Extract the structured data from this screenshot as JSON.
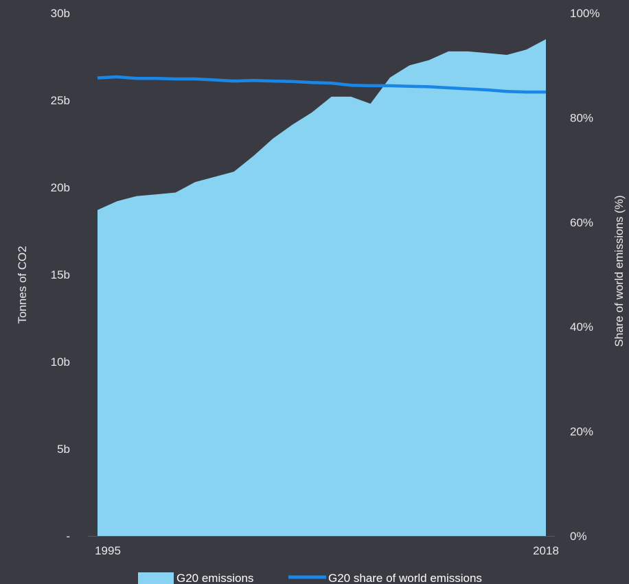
{
  "chart_data": {
    "type": "area",
    "x_range": [
      1995,
      2018
    ],
    "x_tick_labels": [
      "1995",
      "2018"
    ],
    "y_left": {
      "label": "Tonnes of CO2",
      "ylim": [
        0,
        30
      ],
      "tick_values": [
        0,
        5,
        10,
        15,
        20,
        25,
        30
      ],
      "tick_labels": [
        "-",
        "5b",
        "10b",
        "15b",
        "20b",
        "25b",
        "30b"
      ]
    },
    "y_right": {
      "label": "Share of world emissions (%)",
      "ylim": [
        0,
        100
      ],
      "tick_values": [
        0,
        20,
        40,
        60,
        80,
        100
      ],
      "tick_labels": [
        "0%",
        "20%",
        "40%",
        "60%",
        "80%",
        "100%"
      ]
    },
    "series": [
      {
        "name": "G20 emissions",
        "kind": "area",
        "axis": "left",
        "unit": "billion tonnes CO2",
        "color": "#87d3f1",
        "x": [
          1995,
          1996,
          1997,
          1998,
          1999,
          2000,
          2001,
          2002,
          2003,
          2004,
          2005,
          2006,
          2007,
          2008,
          2009,
          2010,
          2011,
          2012,
          2013,
          2014,
          2015,
          2016,
          2017,
          2018
        ],
        "values": [
          18.7,
          19.2,
          19.5,
          19.6,
          19.7,
          20.3,
          20.6,
          20.9,
          21.8,
          22.8,
          23.6,
          24.3,
          25.2,
          25.2,
          24.8,
          26.3,
          27.0,
          27.3,
          27.8,
          27.8,
          27.7,
          27.6,
          27.9,
          28.5
        ]
      },
      {
        "name": "G20 share of world emissions",
        "kind": "line",
        "axis": "right",
        "unit": "%",
        "color": "#1a87e6",
        "x": [
          1995,
          1996,
          1997,
          1998,
          1999,
          2000,
          2001,
          2002,
          2003,
          2004,
          2005,
          2006,
          2007,
          2008,
          2009,
          2010,
          2011,
          2012,
          2013,
          2014,
          2015,
          2016,
          2017,
          2018
        ],
        "values": [
          87.6,
          87.8,
          87.5,
          87.5,
          87.4,
          87.4,
          87.2,
          87.0,
          87.1,
          87.0,
          86.9,
          86.7,
          86.6,
          86.2,
          86.1,
          86.1,
          86.0,
          85.9,
          85.7,
          85.5,
          85.3,
          85.0,
          84.9,
          84.9
        ]
      }
    ],
    "legend": {
      "position": "bottom",
      "items": [
        "G20 emissions",
        "G20 share of world emissions"
      ]
    },
    "grid": false,
    "background": "#3a3a43"
  }
}
